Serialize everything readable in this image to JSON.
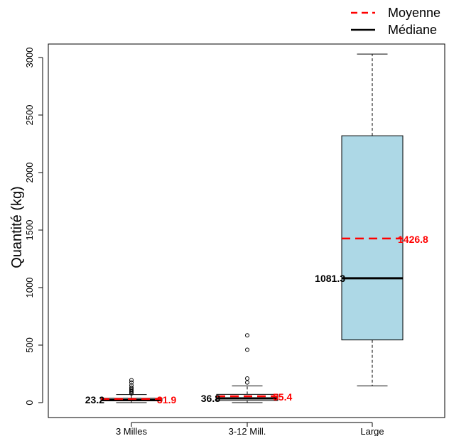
{
  "chart_data": {
    "type": "boxplot",
    "ylabel": "Quantité (kg)",
    "xlabel": "",
    "categories": [
      "3 Milles",
      "3-12 Mill.",
      "Large"
    ],
    "ylim": [
      0,
      3000
    ],
    "yticks": [
      0,
      500,
      1000,
      1500,
      2000,
      2500,
      3000
    ],
    "legend": {
      "position": "top-right",
      "entries": [
        {
          "label": "Moyenne",
          "style": "dashed",
          "color": "#ff0000"
        },
        {
          "label": "Médiane",
          "style": "solid",
          "color": "#000000"
        }
      ]
    },
    "boxes": [
      {
        "category": "3 Milles",
        "q1": 15,
        "median": 23.2,
        "q3": 38,
        "whisker_low": 0,
        "whisker_high": 70,
        "mean": 31.9,
        "median_label": "23.2",
        "mean_label": "31.9",
        "fill": "#ffffff",
        "outliers": [
          80,
          90,
          100,
          110,
          120,
          130,
          150,
          175,
          195
        ]
      },
      {
        "category": "3-12 Mill.",
        "q1": 18,
        "median": 36.8,
        "q3": 72,
        "whisker_low": 0,
        "whisker_high": 145,
        "mean": 55.4,
        "median_label": "36.8",
        "mean_label": "55.4",
        "fill": "#ffffff",
        "outliers": [
          175,
          210,
          460,
          585
        ]
      },
      {
        "category": "Large",
        "q1": 545,
        "median": 1081.3,
        "q3": 2320,
        "whisker_low": 145,
        "whisker_high": 3030,
        "mean": 1426.8,
        "median_label": "1081.3",
        "mean_label": "1426.8",
        "fill": "#add8e6",
        "outliers": []
      }
    ]
  },
  "colors": {
    "mean": "#ff0000",
    "median": "#000000",
    "box_fill_large": "#add8e6"
  }
}
